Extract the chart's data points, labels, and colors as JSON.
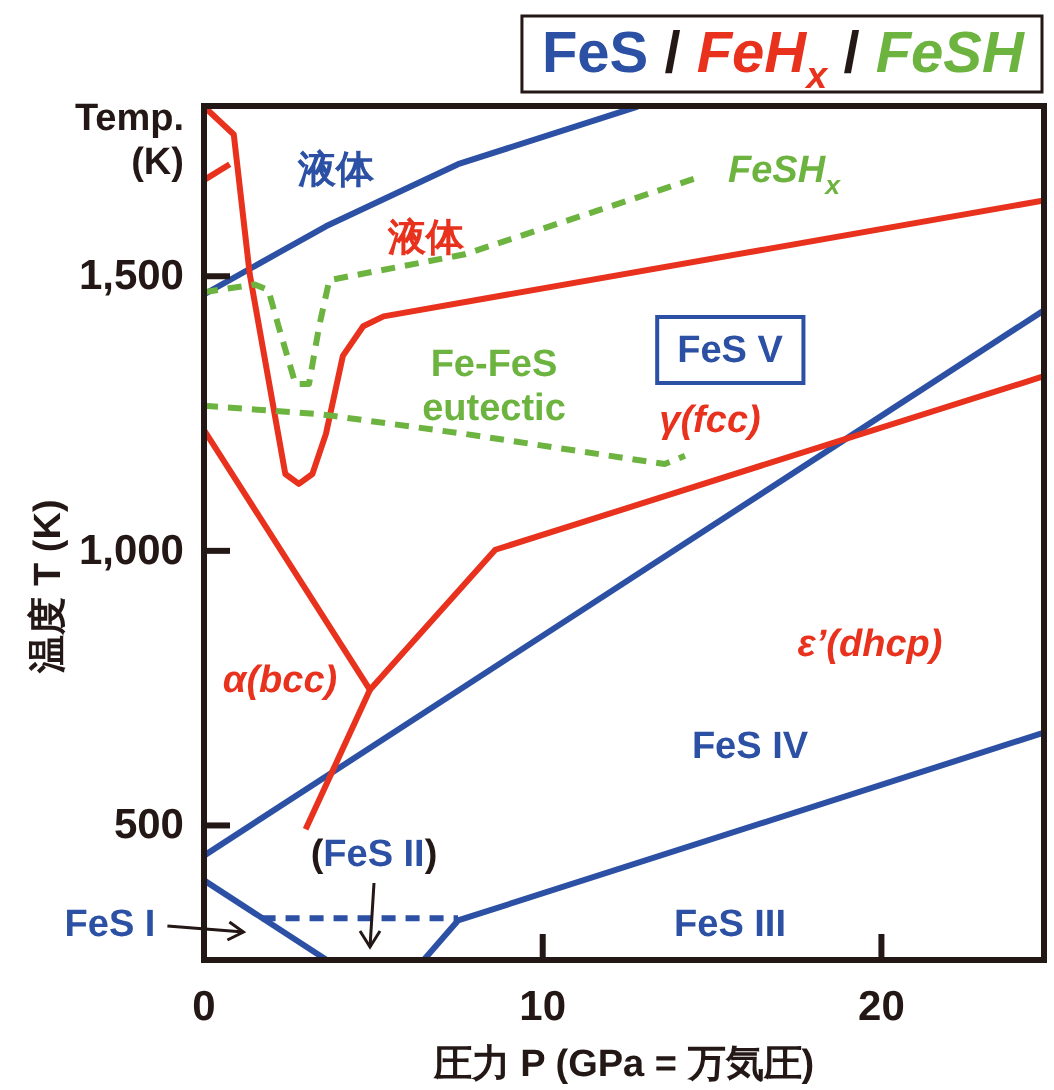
{
  "chart_data": {
    "type": "line",
    "xlabel": "圧力 P (GPa = 万気圧)",
    "ylabel": "温度 T (K)",
    "xlim": [
      0,
      24.8
    ],
    "ylim": [
      255,
      1810
    ],
    "xticks": [
      0,
      10,
      20
    ],
    "yticks": [
      {
        "value": 500,
        "label": "500"
      },
      {
        "value": 1000,
        "label": "1,000"
      },
      {
        "value": 1500,
        "label": "1,500"
      }
    ],
    "line_style": "solid",
    "marker": "none",
    "series": [
      {
        "color": "#2b50a4",
        "x": [
          0,
          3.6,
          7.5,
          12.8
        ],
        "values": [
          1467,
          1591,
          1704,
          1809
        ]
      },
      {
        "color": "#2b50a4",
        "x": [
          0,
          24.8
        ],
        "values": [
          445,
          1438
        ]
      },
      {
        "color": "#2b50a4",
        "x": [
          6.5,
          7.5,
          24.8
        ],
        "values": [
          256,
          327,
          669
        ]
      },
      {
        "color": "#2b50a4",
        "x": [
          0,
          3.6
        ],
        "values": [
          400,
          256
        ]
      },
      {
        "color": "#2b50a4",
        "x": [
          1.7,
          7.5
        ],
        "values": [
          331,
          331
        ],
        "line_style": "dashed"
      },
      {
        "color": "#e8321e",
        "x": [
          0,
          0.88,
          1.35,
          2.4,
          2.8,
          3.2,
          3.6,
          4.1,
          4.7,
          5.3,
          24.8
        ],
        "values": [
          1809,
          1758,
          1504,
          1140,
          1122,
          1140,
          1213,
          1355,
          1409,
          1427,
          1638
        ]
      },
      {
        "color": "#e8321e",
        "x": [
          0,
          0.76
        ],
        "values": [
          1675,
          1704
        ]
      },
      {
        "color": "#e8321e",
        "x": [
          0,
          4.9,
          8.6,
          24.8
        ],
        "values": [
          1220,
          747,
          1002,
          1318
        ]
      },
      {
        "color": "#e8321e",
        "x": [
          3.0,
          4.9
        ],
        "values": [
          493,
          747
        ]
      },
      {
        "color": "#6db33f",
        "x": [
          0,
          1.5,
          1.9,
          2.2,
          2.7,
          3.1,
          3.4,
          3.7,
          7.7,
          14.5
        ],
        "values": [
          1471,
          1485,
          1475,
          1409,
          1304,
          1304,
          1409,
          1493,
          1540,
          1678
        ],
        "line_style": "dashed"
      },
      {
        "color": "#6db33f",
        "x": [
          0,
          3.4,
          7.7,
          13.6,
          14.2
        ],
        "values": [
          1264,
          1249,
          1213,
          1158,
          1173
        ],
        "line_style": "dashed"
      }
    ],
    "annotations": [
      "Temp.\n(K)",
      "液体",
      "液体",
      "FeSH$_{x}$",
      "FeS V",
      "Fe-FeS\neutectic",
      "γ(fcc)",
      "α(bcc)",
      "ε’(dhcp)",
      "FeS IV",
      "(FeS II)",
      "FeS I",
      "FeS III",
      "FeS",
      "/",
      "FeH$_{x}$",
      "/",
      "FeSH"
    ]
  }
}
